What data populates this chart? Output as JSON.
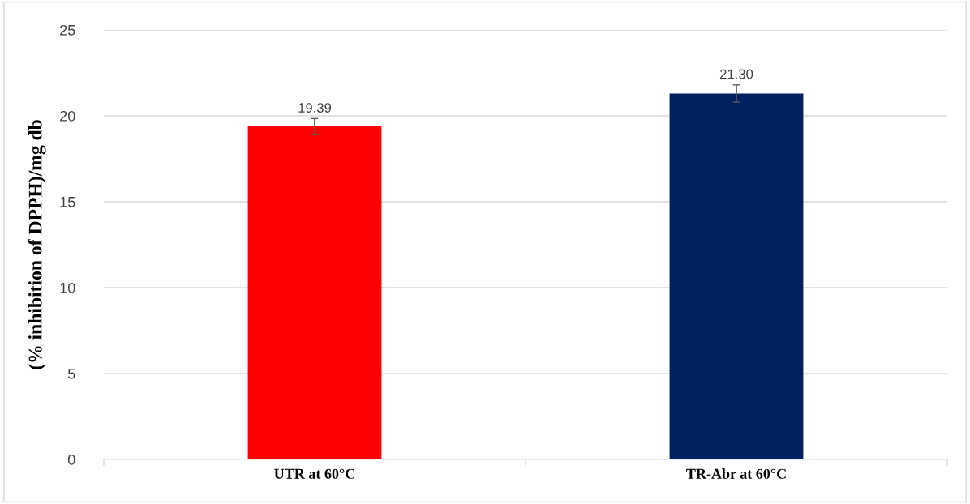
{
  "chart_data": {
    "type": "bar",
    "ylabel": "(% inhibition of DPPH)/mg db",
    "categories": [
      "UTR at 60°C",
      "TR-Abr at 60°C"
    ],
    "values": [
      19.39,
      21.3
    ],
    "colors": [
      "#ff0000",
      "#002060"
    ],
    "errors": [
      0.45,
      0.5
    ],
    "value_labels": [
      "19.39",
      "21.30"
    ],
    "ylim": [
      0,
      25
    ],
    "yticks": [
      0,
      5,
      10,
      15,
      20,
      25
    ],
    "grid": "y"
  }
}
